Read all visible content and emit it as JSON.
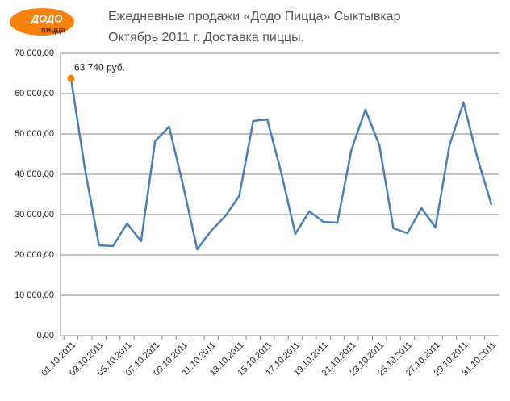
{
  "chart_data": {
    "type": "line",
    "logo": {
      "line1": "ДОДО",
      "line2": "пицца"
    },
    "title": "Ежедневные продажи «Додо Пицца» Сыктывкар",
    "subtitle": "Октябрь 2011 г. Доставка пиццы.",
    "categories": [
      "01.10.2011",
      null,
      "03.10.2011",
      null,
      "05.10.2011",
      null,
      "07.10.2011",
      null,
      "09.10.2011",
      null,
      "11.10.2011",
      null,
      "13.10.2011",
      null,
      "15.10.2011",
      null,
      "17.10.2011",
      null,
      "19.10.2011",
      null,
      "21.10.2011",
      null,
      "23.10.2011",
      null,
      "25.10.2011",
      null,
      "27.10.2011",
      null,
      "29.10.2011",
      null,
      "31.10.2011"
    ],
    "series": [
      {
        "color": "#4a7ebb",
        "values": [
          63740,
          41200,
          22400,
          22200,
          27800,
          23400,
          48200,
          51800,
          37200,
          21400,
          26000,
          29600,
          34600,
          53200,
          53600,
          40400,
          25200,
          30800,
          28200,
          28000,
          46000,
          56000,
          47200,
          26600,
          25400,
          31600,
          26800,
          47200,
          57800,
          44000,
          32400
        ],
        "value_labels": [
          "63 740 руб.",
          null,
          null,
          null,
          null,
          null,
          null,
          null,
          null,
          null,
          null,
          null,
          null,
          null,
          null,
          null,
          null,
          null,
          null,
          null,
          null,
          null,
          null,
          null,
          null,
          null,
          null,
          null,
          null,
          null,
          null
        ],
        "label_marker_color": "#f5820f"
      }
    ],
    "ylim": [
      0,
      70000
    ],
    "yticks": [
      {
        "value": 0,
        "label": "0,00"
      },
      {
        "value": 10000,
        "label": "10 000,00"
      },
      {
        "value": 20000,
        "label": "20 000,00"
      },
      {
        "value": 30000,
        "label": "30 000,00"
      },
      {
        "value": 40000,
        "label": "40 000,00"
      },
      {
        "value": 50000,
        "label": "50 000,00"
      },
      {
        "value": 60000,
        "label": "60 000,00"
      },
      {
        "value": 70000,
        "label": "70 000,00"
      }
    ],
    "grid": true
  }
}
